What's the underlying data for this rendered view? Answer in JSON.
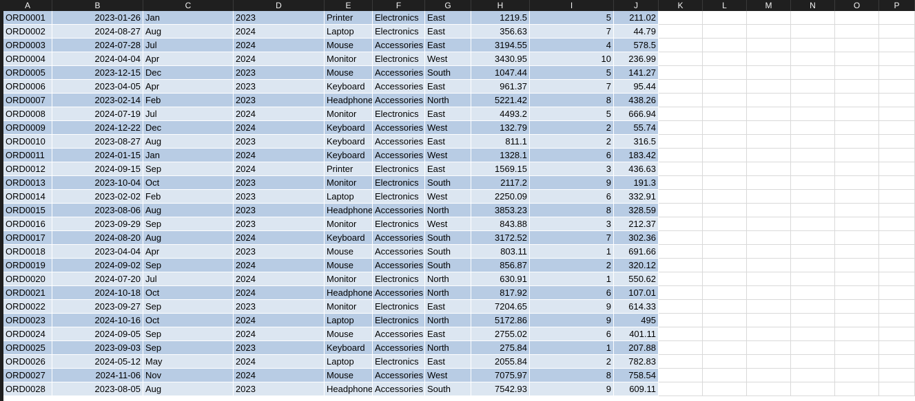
{
  "columns": [
    "A",
    "B",
    "C",
    "D",
    "E",
    "F",
    "G",
    "H",
    "I",
    "J",
    "K",
    "L",
    "M",
    "N",
    "O",
    "P"
  ],
  "rows": [
    [
      "ORD0001",
      "2023-01-26",
      "Jan",
      "2023",
      "Printer",
      "Electronics",
      "East",
      "1219.5",
      "5",
      "211.02"
    ],
    [
      "ORD0002",
      "2024-08-27",
      "Aug",
      "2024",
      "Laptop",
      "Electronics",
      "East",
      "356.63",
      "7",
      "44.79"
    ],
    [
      "ORD0003",
      "2024-07-28",
      "Jul",
      "2024",
      "Mouse",
      "Accessories",
      "East",
      "3194.55",
      "4",
      "578.5"
    ],
    [
      "ORD0004",
      "2024-04-04",
      "Apr",
      "2024",
      "Monitor",
      "Electronics",
      "West",
      "3430.95",
      "10",
      "236.99"
    ],
    [
      "ORD0005",
      "2023-12-15",
      "Dec",
      "2023",
      "Mouse",
      "Accessories",
      "South",
      "1047.44",
      "5",
      "141.27"
    ],
    [
      "ORD0006",
      "2023-04-05",
      "Apr",
      "2023",
      "Keyboard",
      "Accessories",
      "East",
      "961.37",
      "7",
      "95.44"
    ],
    [
      "ORD0007",
      "2023-02-14",
      "Feb",
      "2023",
      "Headphones",
      "Accessories",
      "North",
      "5221.42",
      "8",
      "438.26"
    ],
    [
      "ORD0008",
      "2024-07-19",
      "Jul",
      "2024",
      "Monitor",
      "Electronics",
      "East",
      "4493.2",
      "5",
      "666.94"
    ],
    [
      "ORD0009",
      "2024-12-22",
      "Dec",
      "2024",
      "Keyboard",
      "Accessories",
      "West",
      "132.79",
      "2",
      "55.74"
    ],
    [
      "ORD0010",
      "2023-08-27",
      "Aug",
      "2023",
      "Keyboard",
      "Accessories",
      "East",
      "811.1",
      "2",
      "316.5"
    ],
    [
      "ORD0011",
      "2024-01-15",
      "Jan",
      "2024",
      "Keyboard",
      "Accessories",
      "West",
      "1328.1",
      "6",
      "183.42"
    ],
    [
      "ORD0012",
      "2024-09-15",
      "Sep",
      "2024",
      "Printer",
      "Electronics",
      "East",
      "1569.15",
      "3",
      "436.63"
    ],
    [
      "ORD0013",
      "2023-10-04",
      "Oct",
      "2023",
      "Monitor",
      "Electronics",
      "South",
      "2117.2",
      "9",
      "191.3"
    ],
    [
      "ORD0014",
      "2023-02-02",
      "Feb",
      "2023",
      "Laptop",
      "Electronics",
      "West",
      "2250.09",
      "6",
      "332.91"
    ],
    [
      "ORD0015",
      "2023-08-06",
      "Aug",
      "2023",
      "Headphones",
      "Accessories",
      "North",
      "3853.23",
      "8",
      "328.59"
    ],
    [
      "ORD0016",
      "2023-09-29",
      "Sep",
      "2023",
      "Monitor",
      "Electronics",
      "West",
      "843.88",
      "3",
      "212.37"
    ],
    [
      "ORD0017",
      "2024-08-20",
      "Aug",
      "2024",
      "Keyboard",
      "Accessories",
      "South",
      "3172.52",
      "7",
      "302.36"
    ],
    [
      "ORD0018",
      "2023-04-04",
      "Apr",
      "2023",
      "Mouse",
      "Accessories",
      "South",
      "803.11",
      "1",
      "691.66"
    ],
    [
      "ORD0019",
      "2024-09-02",
      "Sep",
      "2024",
      "Mouse",
      "Accessories",
      "South",
      "856.87",
      "2",
      "320.12"
    ],
    [
      "ORD0020",
      "2024-07-20",
      "Jul",
      "2024",
      "Monitor",
      "Electronics",
      "North",
      "630.91",
      "1",
      "550.62"
    ],
    [
      "ORD0021",
      "2024-10-18",
      "Oct",
      "2024",
      "Headphones",
      "Accessories",
      "North",
      "817.92",
      "6",
      "107.01"
    ],
    [
      "ORD0022",
      "2023-09-27",
      "Sep",
      "2023",
      "Monitor",
      "Electronics",
      "East",
      "7204.65",
      "9",
      "614.33"
    ],
    [
      "ORD0023",
      "2024-10-16",
      "Oct",
      "2024",
      "Laptop",
      "Electronics",
      "North",
      "5172.86",
      "9",
      "495"
    ],
    [
      "ORD0024",
      "2024-09-05",
      "Sep",
      "2024",
      "Mouse",
      "Accessories",
      "East",
      "2755.02",
      "6",
      "401.11"
    ],
    [
      "ORD0025",
      "2023-09-03",
      "Sep",
      "2023",
      "Keyboard",
      "Accessories",
      "North",
      "275.84",
      "1",
      "207.88"
    ],
    [
      "ORD0026",
      "2024-05-12",
      "May",
      "2024",
      "Laptop",
      "Electronics",
      "East",
      "2055.84",
      "2",
      "782.83"
    ],
    [
      "ORD0027",
      "2024-11-06",
      "Nov",
      "2024",
      "Mouse",
      "Accessories",
      "West",
      "7075.97",
      "8",
      "758.54"
    ],
    [
      "ORD0028",
      "2023-08-05",
      "Aug",
      "2023",
      "Headphones",
      "Accessories",
      "South",
      "7542.93",
      "9",
      "609.11"
    ]
  ],
  "colors": {
    "header_bg": "#1f1f1f",
    "header_text": "#f2f2f2",
    "band_dark": "#b8cce4",
    "band_light": "#dce6f1",
    "gridline": "#d9d9d9"
  }
}
